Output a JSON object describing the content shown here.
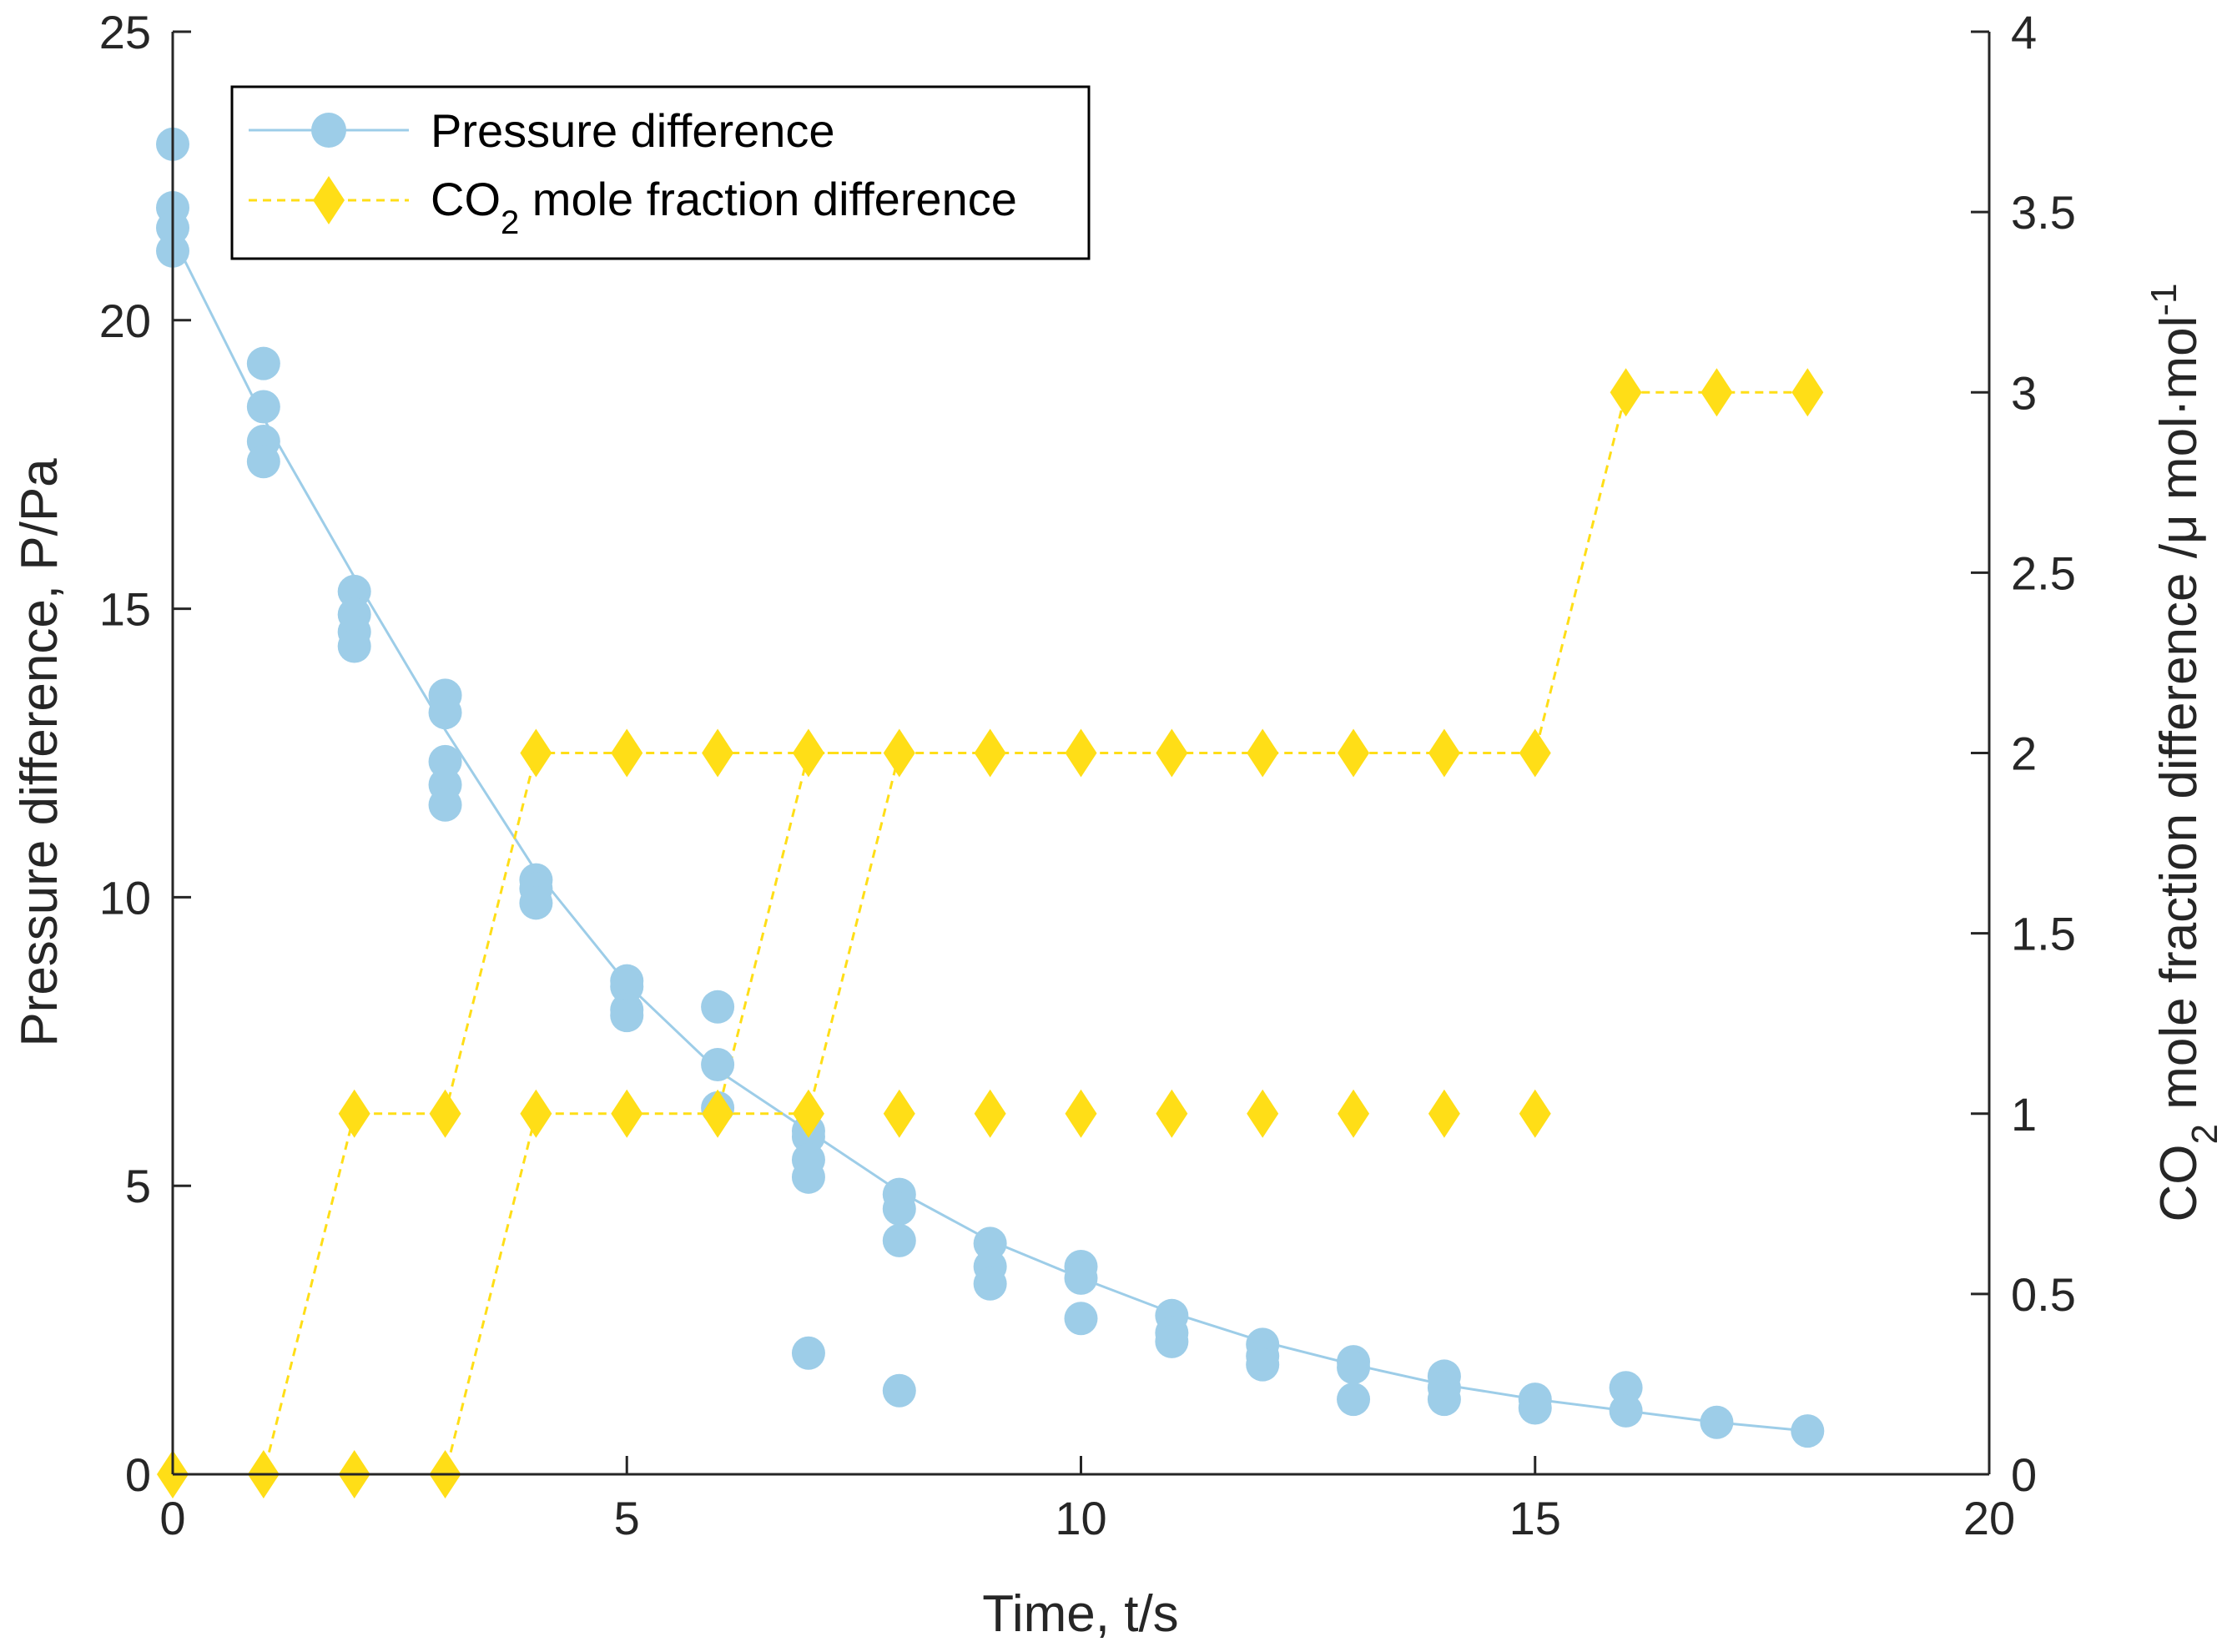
{
  "chart_data": {
    "type": "scatter",
    "xlabel": "Time, t/s",
    "ylabel": "Pressure difference, P/Pa",
    "y2label": {
      "prefix": "CO",
      "sub": "2",
      "text": " mole fraction difference /μ mol·mol",
      "sup": "-1"
    },
    "xlim": [
      0,
      20
    ],
    "ylim": [
      0,
      25
    ],
    "y2lim": [
      0,
      4
    ],
    "xticks": [
      "0",
      "5",
      "10",
      "15",
      "20"
    ],
    "yticks": [
      "0",
      "5",
      "10",
      "15",
      "20",
      "25"
    ],
    "y2ticks": [
      "0",
      "0.5",
      "1",
      "1.5",
      "2",
      "2.5",
      "3",
      "3.5",
      "4"
    ],
    "legend_position": "top-left",
    "colors": {
      "pressure": "#9dcde8",
      "co2": "#ffde17",
      "axis": "#262626"
    },
    "series": [
      {
        "name": "Pressure difference",
        "axis": "left",
        "marker": "circle",
        "line_style": "solid",
        "points": [
          [
            0,
            23.05
          ],
          [
            0,
            21.95
          ],
          [
            0,
            21.6
          ],
          [
            0,
            21.2
          ],
          [
            1,
            19.25
          ],
          [
            1,
            18.5
          ],
          [
            1,
            17.9
          ],
          [
            1,
            17.55
          ],
          [
            2,
            15.3
          ],
          [
            2,
            14.9
          ],
          [
            2,
            14.6
          ],
          [
            2,
            14.35
          ],
          [
            3,
            13.5
          ],
          [
            3,
            13.2
          ],
          [
            3,
            12.35
          ],
          [
            3,
            11.95
          ],
          [
            3,
            11.6
          ],
          [
            4,
            10.3
          ],
          [
            4,
            10.15
          ],
          [
            4,
            9.9
          ],
          [
            5,
            8.55
          ],
          [
            5,
            8.45
          ],
          [
            5,
            8.05
          ],
          [
            5,
            7.95
          ],
          [
            6,
            8.1
          ],
          [
            6,
            7.1
          ],
          [
            6,
            6.35
          ],
          [
            7,
            5.95
          ],
          [
            7,
            5.85
          ],
          [
            7,
            5.45
          ],
          [
            7,
            5.15
          ],
          [
            7,
            2.1
          ],
          [
            8,
            4.85
          ],
          [
            8,
            4.6
          ],
          [
            8,
            4.05
          ],
          [
            8,
            1.45
          ],
          [
            9,
            4.0
          ],
          [
            9,
            3.6
          ],
          [
            9,
            3.3
          ],
          [
            10,
            3.6
          ],
          [
            10,
            3.4
          ],
          [
            10,
            2.7
          ],
          [
            11,
            2.75
          ],
          [
            11,
            2.45
          ],
          [
            11,
            2.3
          ],
          [
            12,
            2.25
          ],
          [
            12,
            2.05
          ],
          [
            12,
            1.9
          ],
          [
            13,
            1.95
          ],
          [
            13,
            1.85
          ],
          [
            13,
            1.3
          ],
          [
            14,
            1.7
          ],
          [
            14,
            1.5
          ],
          [
            14,
            1.3
          ],
          [
            15,
            1.3
          ],
          [
            15,
            1.15
          ],
          [
            16,
            1.5
          ],
          [
            16,
            1.1
          ],
          [
            17,
            0.9
          ],
          [
            18,
            0.75
          ]
        ],
        "fit_curve": [
          [
            0,
            21.45
          ],
          [
            1,
            18.3
          ],
          [
            2,
            15.55
          ],
          [
            3,
            12.9
          ],
          [
            4,
            10.45
          ],
          [
            5,
            8.5
          ],
          [
            6,
            7.0
          ],
          [
            7,
            5.95
          ],
          [
            8,
            4.9
          ],
          [
            9,
            4.05
          ],
          [
            10,
            3.4
          ],
          [
            11,
            2.8
          ],
          [
            12,
            2.3
          ],
          [
            13,
            1.9
          ],
          [
            14,
            1.55
          ],
          [
            15,
            1.3
          ],
          [
            16,
            1.1
          ],
          [
            17,
            0.9
          ],
          [
            18,
            0.75
          ]
        ]
      },
      {
        "name": "CO2 mole fraction difference",
        "legend_prefix": "CO",
        "legend_sub": "2",
        "legend_rest": " mole fraction difference",
        "axis": "right",
        "marker": "diamond",
        "line_style": "dashed",
        "points": [
          [
            0,
            0
          ],
          [
            1,
            0
          ],
          [
            2,
            0
          ],
          [
            3,
            0
          ],
          [
            2,
            1
          ],
          [
            3,
            1
          ],
          [
            4,
            1
          ],
          [
            5,
            1
          ],
          [
            6,
            1
          ],
          [
            7,
            1
          ],
          [
            8,
            1
          ],
          [
            9,
            1
          ],
          [
            10,
            1
          ],
          [
            11,
            1
          ],
          [
            12,
            1
          ],
          [
            13,
            1
          ],
          [
            14,
            1
          ],
          [
            15,
            1
          ],
          [
            4,
            2
          ],
          [
            5,
            2
          ],
          [
            6,
            2
          ],
          [
            7,
            2
          ],
          [
            8,
            2
          ],
          [
            9,
            2
          ],
          [
            10,
            2
          ],
          [
            11,
            2
          ],
          [
            12,
            2
          ],
          [
            13,
            2
          ],
          [
            14,
            2
          ],
          [
            15,
            2
          ],
          [
            16,
            3
          ],
          [
            17,
            3
          ],
          [
            18,
            3
          ]
        ],
        "lines": [
          [
            [
              0,
              0
            ],
            [
              1,
              0
            ],
            [
              2,
              1
            ],
            [
              3,
              1
            ],
            [
              4,
              2
            ],
            [
              5,
              2
            ],
            [
              6,
              2
            ],
            [
              7,
              2
            ],
            [
              8,
              2
            ],
            [
              9,
              2
            ],
            [
              10,
              2
            ],
            [
              11,
              2
            ],
            [
              12,
              2
            ],
            [
              13,
              2
            ],
            [
              14,
              2
            ],
            [
              15,
              2
            ],
            [
              16,
              3
            ],
            [
              17,
              3
            ],
            [
              18,
              3
            ]
          ],
          [
            [
              2,
              0
            ],
            [
              3,
              0
            ],
            [
              4,
              1
            ],
            [
              5,
              1
            ],
            [
              6,
              1
            ],
            [
              7,
              2
            ],
            [
              8,
              2
            ]
          ],
          [
            [
              6,
              1
            ],
            [
              7,
              1
            ],
            [
              8,
              2
            ]
          ]
        ]
      }
    ]
  }
}
